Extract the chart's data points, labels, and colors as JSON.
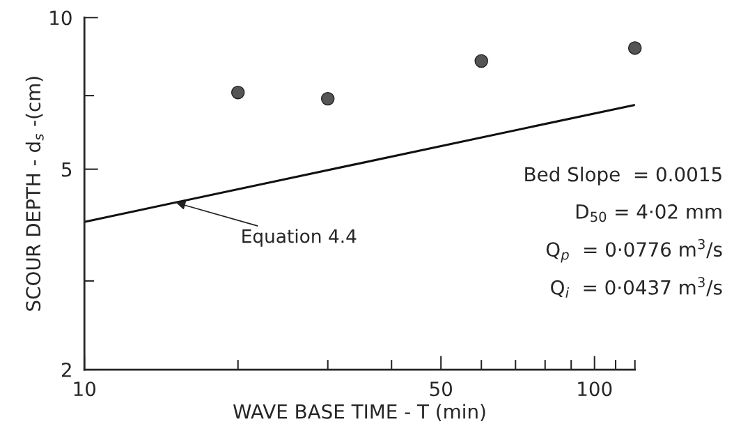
{
  "chart_data": {
    "type": "scatter",
    "xlabel": "WAVE BASE TIME - T (min)",
    "ylabel": "SCOUR DEPTH - d$_{s}$ -(cm)",
    "log": "xy",
    "grid": false,
    "legend": false,
    "marker": "circle",
    "xlim": [
      10,
      120
    ],
    "ylim": [
      2,
      10
    ],
    "xticks": [
      10,
      {
        "value": 20,
        "label": null
      },
      {
        "value": 30,
        "label": null
      },
      {
        "value": 40,
        "label": null
      },
      50,
      {
        "value": 60,
        "label": null
      },
      {
        "value": 70,
        "label": null
      },
      {
        "value": 80,
        "label": null
      },
      {
        "value": 90,
        "label": null
      },
      100,
      {
        "value": 110,
        "label": null
      },
      {
        "value": 120,
        "label": null
      }
    ],
    "yticks": [
      2,
      {
        "value": 3,
        "label": null
      },
      5,
      {
        "value": 7,
        "label": null
      },
      10
    ],
    "series": [
      {
        "color": "#555555",
        "x": [
          20,
          30,
          60,
          120
        ],
        "values": [
          7.1,
          6.9,
          8.2,
          8.7
        ]
      },
      {
        "type": "line",
        "color": "#111111",
        "marker": "none",
        "line_style": "solid",
        "x": [
          10,
          120
        ],
        "values": [
          3.93,
          6.71
        ]
      }
    ],
    "annotations": [
      {
        "text": "Equation 4.4",
        "x": 15,
        "y": 4.3
      },
      "Bed Slope  = 0.0015",
      "D$_{50}$ = 4·02 mm",
      "Q$_{p}$  = 0·0776 m$^{3}$/s",
      "Q$_{i}$  = 0·0437 m$^{3}$/s"
    ]
  }
}
